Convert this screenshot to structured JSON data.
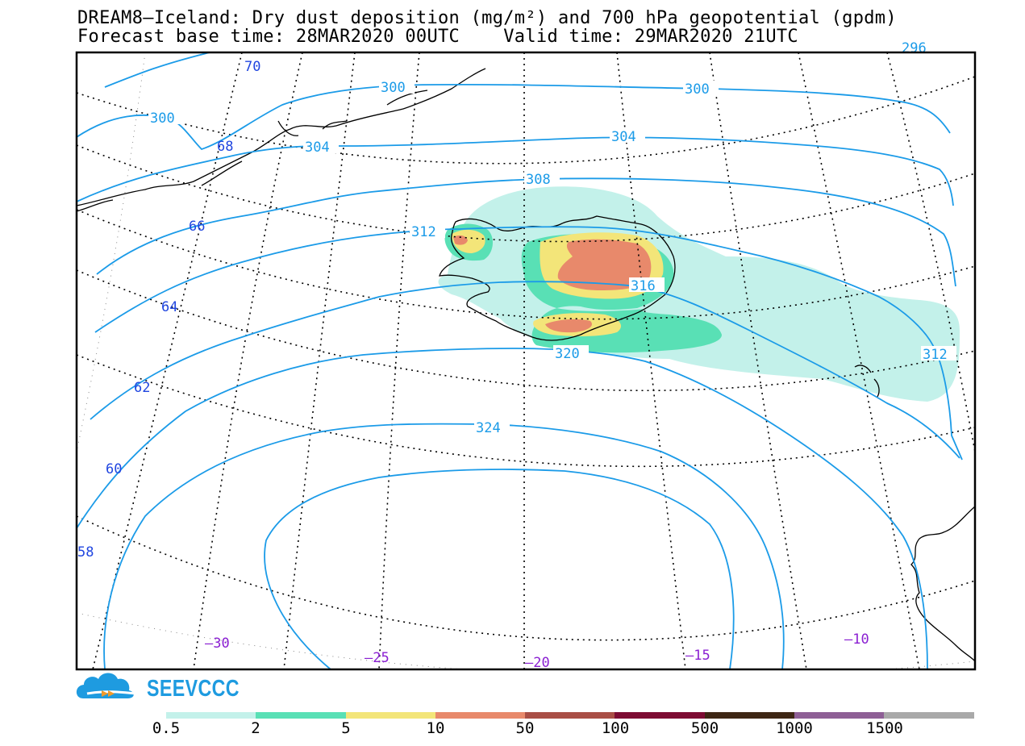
{
  "header": {
    "title": "DREAM8–Iceland: Dry dust deposition (mg/m²) and 700 hPa geopotential (gpdm)",
    "subtitle": "Forecast base time: 28MAR2020 00UTC    Valid time: 29MAR2020 21UTC"
  },
  "map": {
    "latitude_labels": [
      "70",
      "68",
      "66",
      "64",
      "62",
      "60",
      "58"
    ],
    "longitude_labels": [
      "–30",
      "–25",
      "–20",
      "–15",
      "–10"
    ],
    "contour_labels": [
      "300",
      "300",
      "300",
      "304",
      "304",
      "308",
      "312",
      "316",
      "312",
      "320",
      "324",
      "296"
    ],
    "contour_color": "#1b9be8",
    "latitude_label_color": "#2046e0",
    "longitude_label_color": "#8a1fd2"
  },
  "branding": {
    "logo_text": "SEEVCCC",
    "logo_color": "#1e9be0"
  },
  "legend": {
    "labels": [
      "0.5",
      "2",
      "5",
      "10",
      "50",
      "100",
      "500",
      "1000",
      "1500"
    ],
    "colors": [
      "#c3f1ea",
      "#59e0b5",
      "#f3e579",
      "#e8896b",
      "#a94e45",
      "#7d0b33",
      "#3e2614",
      "#8e5f96",
      "#a9a9a9"
    ]
  }
}
